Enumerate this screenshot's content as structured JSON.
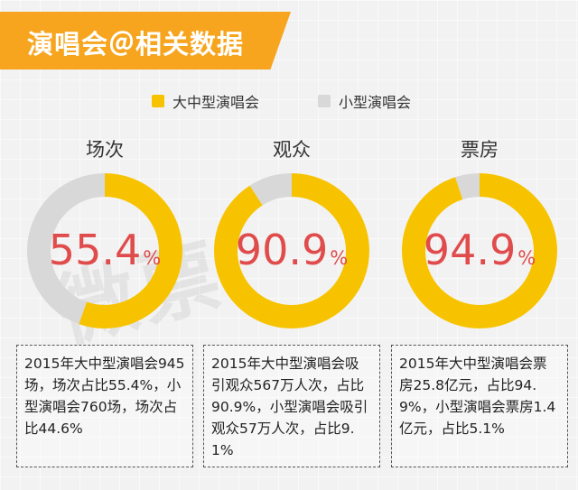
{
  "header": {
    "title": "演唱会＠相关数据"
  },
  "legend": [
    {
      "label": "大中型演唱会",
      "color": "#f7c300"
    },
    {
      "label": "小型演唱会",
      "color": "#d8d8d8"
    }
  ],
  "colors": {
    "major": "#f7c300",
    "minor": "#d8d8d8",
    "percent_text": "#e04b4b",
    "banner": "#f7a51e"
  },
  "chart_data": [
    {
      "type": "pie",
      "title": "场次",
      "categories": [
        "大中型演唱会",
        "小型演唱会"
      ],
      "values": [
        55.4,
        44.6
      ],
      "label": "55.4",
      "unit": "%",
      "description": "2015年大中型演唱会945场，场次占比55.4%，小型演唱会760场，场次占比44.6%"
    },
    {
      "type": "pie",
      "title": "观众",
      "categories": [
        "大中型演唱会",
        "小型演唱会"
      ],
      "values": [
        90.9,
        9.1
      ],
      "label": "90.9",
      "unit": "%",
      "description": "2015年大中型演唱会吸引观众567万人次，占比90.9%，小型演唱会吸引观众57万人次，占比9.1%"
    },
    {
      "type": "pie",
      "title": "票房",
      "categories": [
        "大中型演唱会",
        "小型演唱会"
      ],
      "values": [
        94.9,
        5.1
      ],
      "label": "94.9",
      "unit": "%",
      "description": "2015年大中型演唱会票房25.8亿元，占比94.9%，小型演唱会票房1.4亿元，占比5.1%"
    }
  ]
}
